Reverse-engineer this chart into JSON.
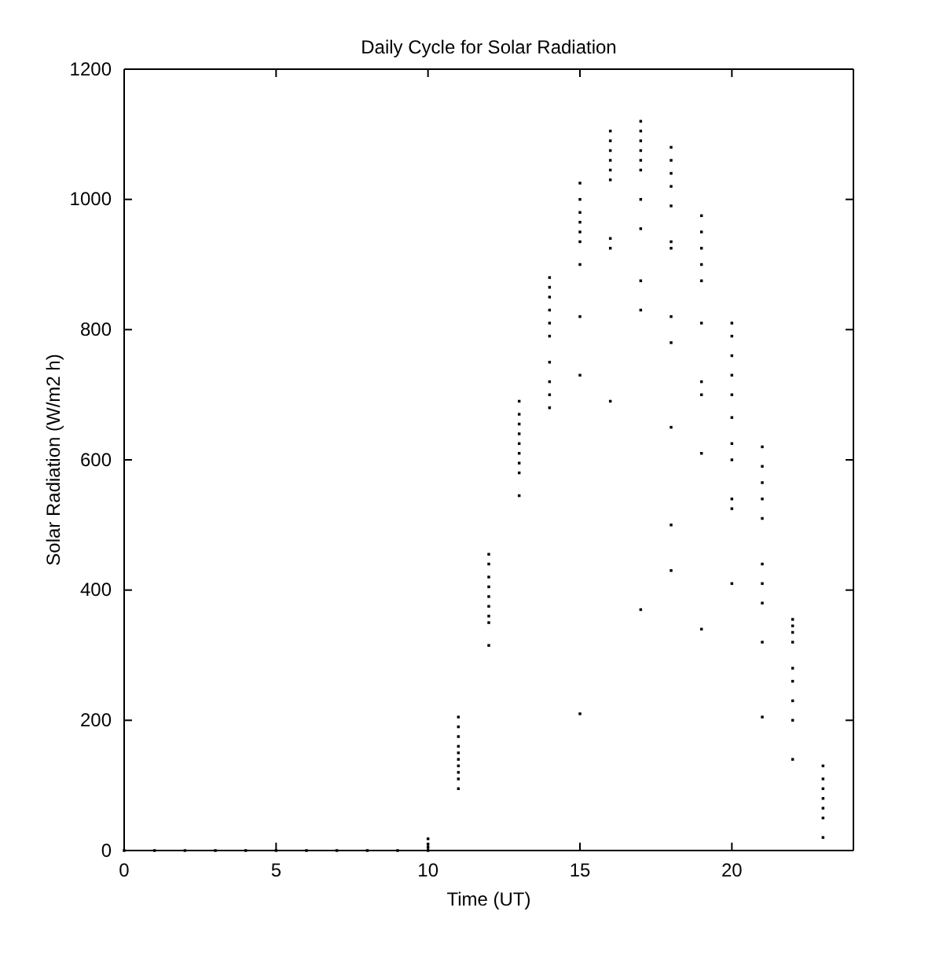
{
  "chart_data": {
    "type": "scatter",
    "title": "Daily Cycle for Solar Radiation",
    "xlabel": "Time (UT)",
    "ylabel": "Solar Radiation (W/m2 h)",
    "xlim": [
      0,
      24
    ],
    "ylim": [
      0,
      1200
    ],
    "xticks": [
      0,
      5,
      10,
      15,
      20
    ],
    "yticks": [
      0,
      200,
      400,
      600,
      800,
      1000,
      1200
    ],
    "grid": false,
    "marker": "square",
    "series": [
      {
        "color": "#000000",
        "x": [
          0,
          1,
          2,
          3,
          4,
          5,
          6,
          7,
          8,
          9,
          10,
          10,
          10,
          10,
          11,
          11,
          11,
          11,
          11,
          11,
          11,
          11,
          11,
          11,
          12,
          12,
          12,
          12,
          12,
          12,
          12,
          12,
          12,
          13,
          13,
          13,
          13,
          13,
          13,
          13,
          13,
          13,
          14,
          14,
          14,
          14,
          14,
          14,
          14,
          14,
          14,
          14,
          15,
          15,
          15,
          15,
          15,
          15,
          15,
          15,
          15,
          15,
          16,
          16,
          16,
          16,
          16,
          16,
          16,
          16,
          16,
          17,
          17,
          17,
          17,
          17,
          17,
          17,
          17,
          17,
          17,
          17,
          18,
          18,
          18,
          18,
          18,
          18,
          18,
          18,
          18,
          18,
          18,
          18,
          19,
          19,
          19,
          19,
          19,
          19,
          19,
          19,
          19,
          19,
          20,
          20,
          20,
          20,
          20,
          20,
          20,
          20,
          20,
          20,
          20,
          21,
          21,
          21,
          21,
          21,
          21,
          21,
          21,
          21,
          21,
          22,
          22,
          22,
          22,
          22,
          22,
          22,
          22,
          22,
          23,
          23,
          23,
          23,
          23,
          23,
          23
        ],
        "values": [
          0,
          0,
          0,
          0,
          0,
          0,
          0,
          0,
          0,
          0,
          0,
          5,
          10,
          18,
          95,
          110,
          120,
          130,
          140,
          150,
          160,
          175,
          190,
          205,
          315,
          350,
          360,
          375,
          390,
          405,
          420,
          440,
          455,
          545,
          580,
          595,
          610,
          625,
          640,
          655,
          670,
          690,
          680,
          700,
          720,
          750,
          790,
          810,
          830,
          850,
          865,
          880,
          210,
          730,
          820,
          900,
          935,
          950,
          965,
          980,
          1000,
          1025,
          690,
          925,
          940,
          1030,
          1045,
          1060,
          1075,
          1090,
          1105,
          370,
          830,
          875,
          955,
          1000,
          1045,
          1060,
          1075,
          1090,
          1105,
          1120,
          430,
          500,
          650,
          780,
          820,
          925,
          935,
          990,
          1020,
          1040,
          1060,
          1080,
          340,
          610,
          700,
          720,
          810,
          875,
          900,
          925,
          950,
          975,
          410,
          525,
          540,
          600,
          625,
          665,
          700,
          730,
          760,
          790,
          810,
          205,
          320,
          380,
          410,
          440,
          510,
          540,
          565,
          590,
          620,
          140,
          200,
          230,
          260,
          280,
          320,
          335,
          345,
          355,
          20,
          50,
          65,
          80,
          95,
          110,
          130
        ]
      }
    ]
  }
}
